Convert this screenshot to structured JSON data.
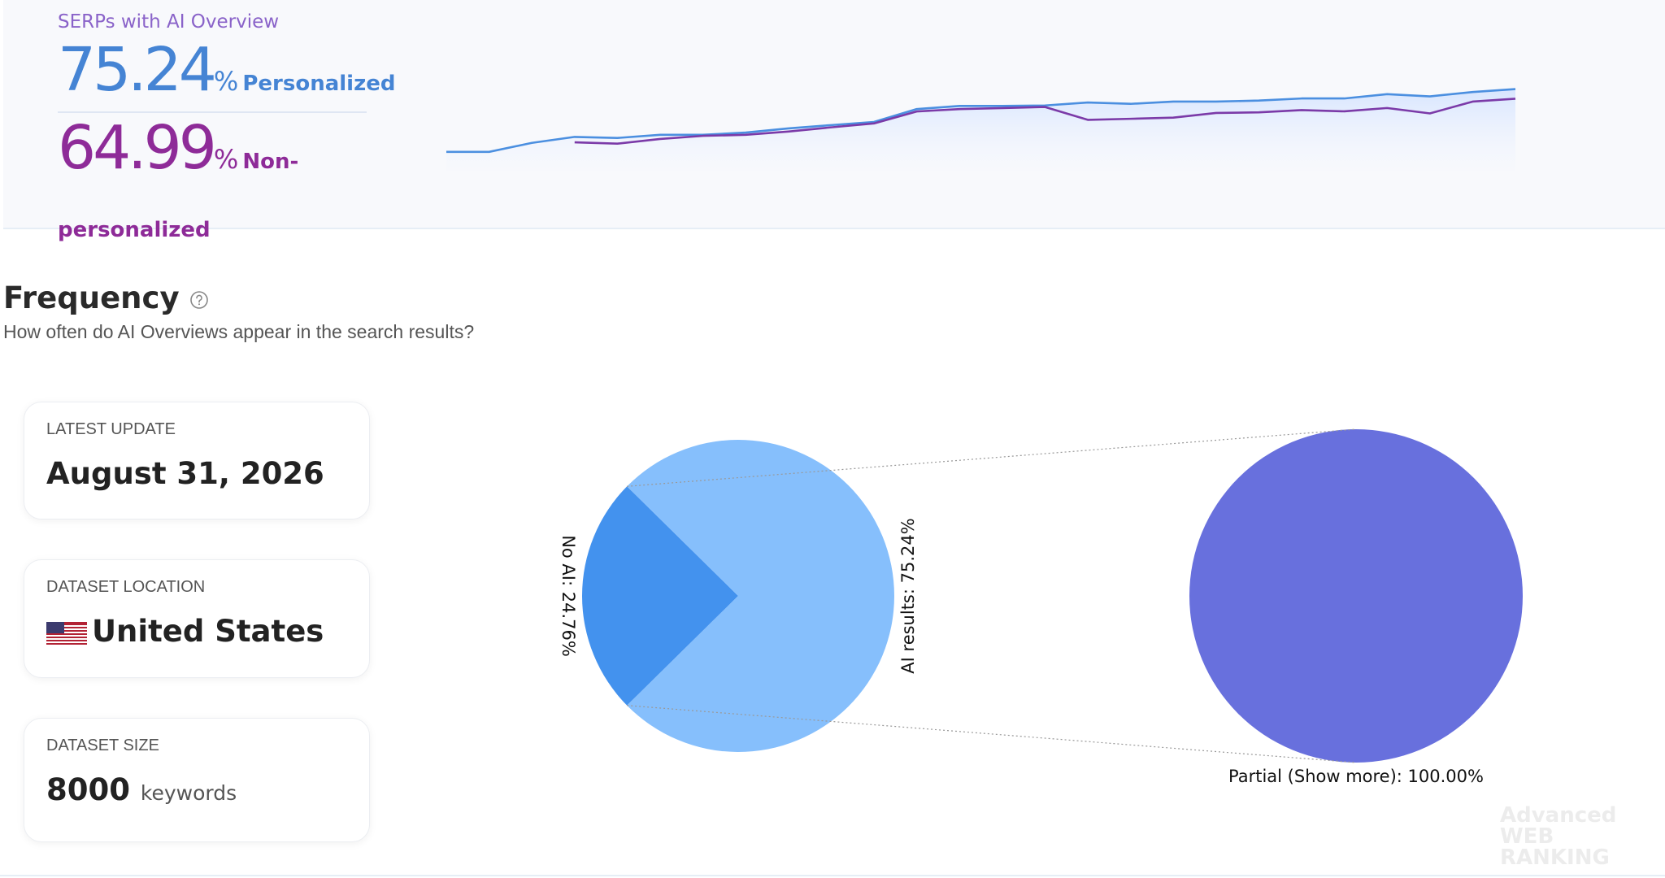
{
  "header": {
    "title": "SERPs with AI Overview",
    "personalized": {
      "value": 75.24,
      "unit": "%",
      "label": "Personalized"
    },
    "non_personalized": {
      "value": 64.99,
      "unit": "%",
      "label": "Non-personalized"
    }
  },
  "frequency": {
    "title": "Frequency",
    "subtitle": "How often do AI Overviews appear in the search results?"
  },
  "cards": [
    {
      "label": "LATEST UPDATE",
      "value": "August 31, 2026"
    },
    {
      "label": "DATASET LOCATION",
      "value": "United States"
    },
    {
      "label": "DATASET SIZE",
      "value": "8000",
      "unit": "keywords"
    }
  ],
  "watermark": [
    "Advanced",
    "WEB RANKING"
  ],
  "chart_data": [
    {
      "type": "line",
      "categories": [
        null,
        null,
        null,
        null,
        null,
        null,
        null,
        null,
        null,
        null,
        null,
        null,
        null,
        null,
        null,
        null,
        null,
        null,
        null,
        null,
        null,
        null,
        null,
        null,
        null,
        null
      ],
      "ylim": [
        30,
        80
      ],
      "area_fill": true,
      "series": [
        {
          "name": "Personalized",
          "color": "#4b8fe0",
          "values": [
            35,
            35,
            41,
            45,
            44.3,
            46.4,
            46.4,
            47.9,
            50.7,
            52.9,
            55,
            63.6,
            65.7,
            65.7,
            66,
            68,
            67.1,
            68.6,
            68.6,
            69.3,
            70.7,
            70.7,
            73.6,
            72.1,
            75,
            77
          ]
        },
        {
          "name": "Non-personalized",
          "color": "#7b3aa8",
          "values": [
            null,
            null,
            null,
            41.4,
            40.5,
            43.6,
            45.7,
            46.4,
            48.6,
            51.4,
            54,
            62,
            63.6,
            64.3,
            65,
            56.4,
            57.1,
            57.9,
            61,
            61.4,
            62.9,
            62.1,
            64.3,
            60.7,
            68.6,
            70.5
          ]
        }
      ]
    },
    {
      "type": "pie",
      "categories": [
        "No AI",
        "AI results"
      ],
      "values": [
        24.76,
        75.24
      ],
      "value_labels": [
        "No AI: 24.76%",
        "AI results: 75.24%"
      ],
      "colors": [
        "#4392ee",
        "#86bffc"
      ]
    },
    {
      "type": "pie",
      "categories": [
        "Partial (Show more)"
      ],
      "values": [
        100
      ],
      "value_labels": [
        "Partial (Show more): 100.00%"
      ],
      "colors": [
        "#6870dd"
      ]
    }
  ]
}
